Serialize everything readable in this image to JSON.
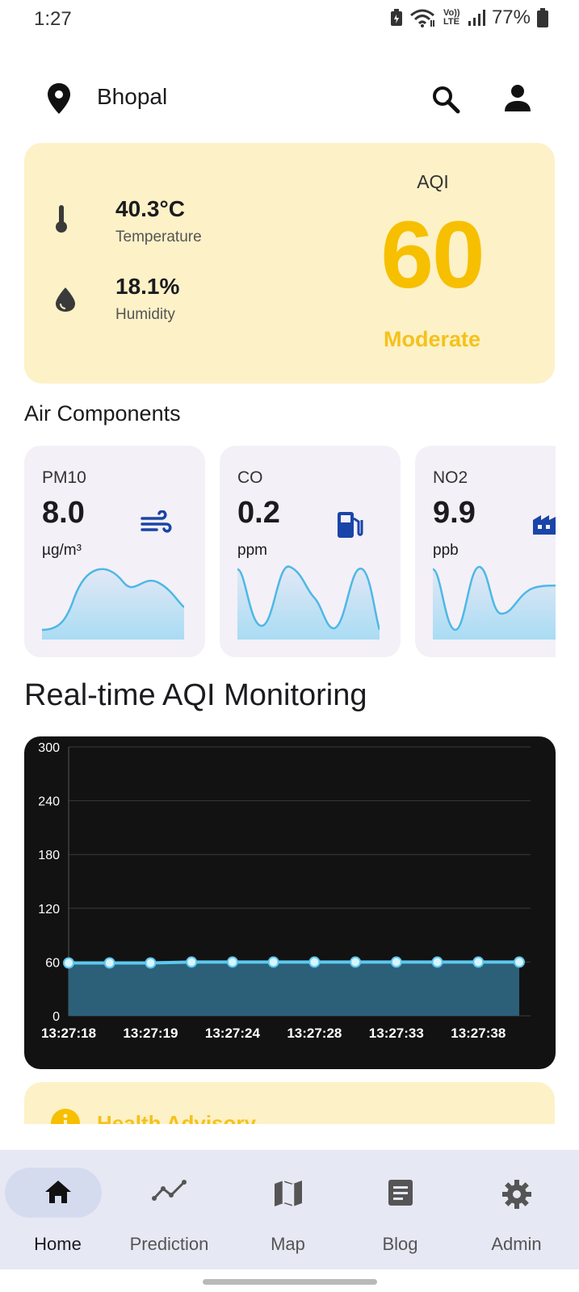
{
  "status_bar": {
    "time": "1:27",
    "signal_label": "Vo)) LTE",
    "battery": "77%"
  },
  "header": {
    "city": "Bhopal",
    "icons": [
      "location-pin-icon",
      "search-icon",
      "person-icon"
    ]
  },
  "weather": {
    "temperature_value": "40.3°C",
    "temperature_label": "Temperature",
    "humidity_value": "18.1%",
    "humidity_label": "Humidity"
  },
  "aqi": {
    "label": "AQI",
    "value": "60",
    "status": "Moderate",
    "color": "#f6c000"
  },
  "air_components": {
    "title": "Air Components",
    "items": [
      {
        "name": "PM10",
        "value": "8.0",
        "unit": "µg/m³",
        "icon": "wind-icon"
      },
      {
        "name": "CO",
        "value": "0.2",
        "unit": "ppm",
        "icon": "fuel-pump-icon"
      },
      {
        "name": "NO2",
        "value": "9.9",
        "unit": "ppb",
        "icon": "factory-icon"
      }
    ]
  },
  "realtime": {
    "title": "Real-time AQI Monitoring"
  },
  "chart_data": {
    "type": "area",
    "title": "Real-time AQI Monitoring",
    "x": [
      "13:27:18",
      "",
      "13:27:19",
      "",
      "13:27:24",
      "",
      "13:27:28",
      "",
      "13:27:33",
      "",
      "13:27:38",
      ""
    ],
    "x_tick_labels": [
      "13:27:18",
      "13:27:19",
      "13:27:24",
      "13:27:28",
      "13:27:33",
      "13:27:38"
    ],
    "values": [
      59,
      59,
      59,
      60,
      60,
      60,
      60,
      60,
      60,
      60,
      60,
      60
    ],
    "yticks": [
      "300",
      "240",
      "180",
      "120",
      "60",
      "0"
    ],
    "ylim": [
      0,
      300
    ],
    "grid": true,
    "line_color": "#5cc8ef",
    "fill_color": "#2b6078"
  },
  "advisory": {
    "title": "Health Advisory"
  },
  "bottom_nav": {
    "items": [
      {
        "label": "Home",
        "icon": "home-icon",
        "active": true
      },
      {
        "label": "Prediction",
        "icon": "trend-line-icon",
        "active": false
      },
      {
        "label": "Map",
        "icon": "map-icon",
        "active": false
      },
      {
        "label": "Blog",
        "icon": "article-icon",
        "active": false
      },
      {
        "label": "Admin",
        "icon": "gear-icon",
        "active": false
      }
    ]
  }
}
